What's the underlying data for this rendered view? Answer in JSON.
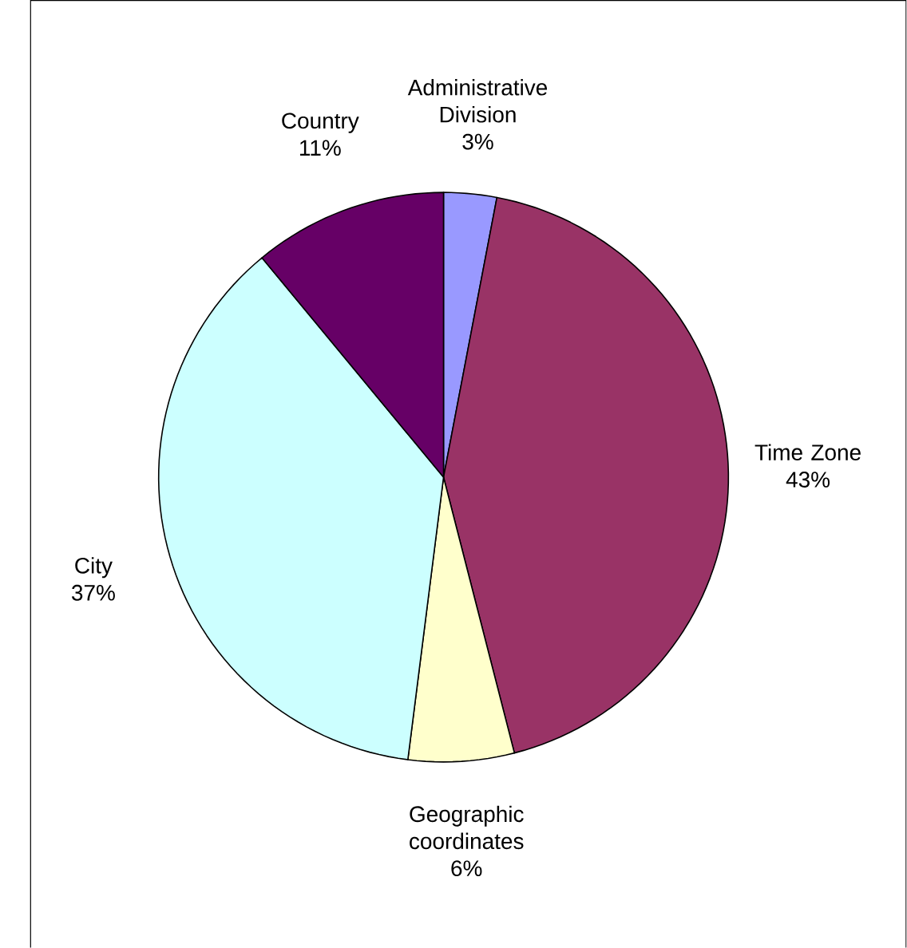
{
  "chart_data": {
    "type": "pie",
    "categories": [
      "Administrative Division",
      "Time Zone",
      "Geographic coordinates",
      "City",
      "Country"
    ],
    "values": [
      3,
      43,
      6,
      37,
      11
    ],
    "value_labels": [
      "3%",
      "43%",
      "6%",
      "37%",
      "11%"
    ],
    "colors": [
      "#9999ff",
      "#993366",
      "#ffffcc",
      "#ccffff",
      "#660066"
    ]
  }
}
